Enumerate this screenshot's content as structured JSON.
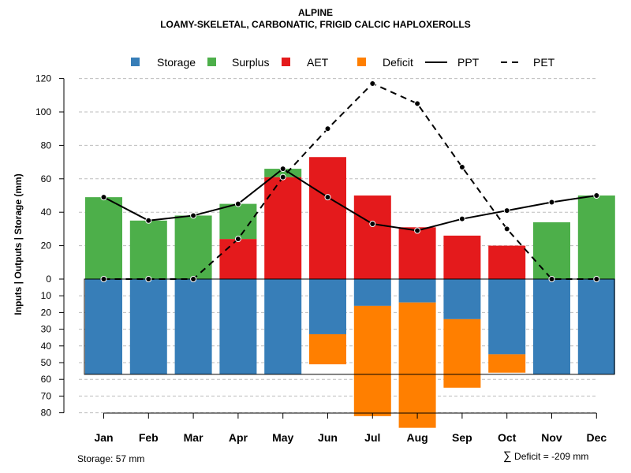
{
  "chart_data": {
    "type": "bar",
    "title": "ALPINE",
    "subtitle": "LOAMY-SKELETAL, CARBONATIC, FRIGID CALCIC HAPLOXEROLLS",
    "ylabel": "Inputs | Outputs | Storage    (mm)",
    "categories": [
      "Jan",
      "Feb",
      "Mar",
      "Apr",
      "May",
      "Jun",
      "Jul",
      "Aug",
      "Sep",
      "Oct",
      "Nov",
      "Dec"
    ],
    "upper_ticks": [
      "0",
      "20",
      "40",
      "60",
      "80",
      "100",
      "120"
    ],
    "lower_ticks": [
      "10",
      "20",
      "30",
      "40",
      "50",
      "60",
      "70",
      "80"
    ],
    "ylim_upper": [
      0,
      120
    ],
    "ylim_lower": [
      0,
      80
    ],
    "storage_capacity": 57,
    "legend": [
      "Storage",
      "Surplus",
      "AET",
      "Deficit",
      "PPT",
      "PET"
    ],
    "colors": {
      "storage": "#377EB8",
      "surplus": "#4DAF4A",
      "aet": "#E41A1C",
      "deficit": "#FF7F00"
    },
    "series": [
      {
        "name": "Surplus",
        "values": [
          49,
          35,
          38,
          21,
          5,
          0,
          0,
          0,
          0,
          0,
          34,
          50
        ]
      },
      {
        "name": "AET",
        "values": [
          0,
          0,
          0,
          24,
          61,
          73,
          50,
          31,
          26,
          20,
          0,
          0
        ]
      },
      {
        "name": "Storage",
        "values": [
          57,
          57,
          57,
          57,
          57,
          33,
          16,
          14,
          24,
          45,
          57,
          57
        ]
      },
      {
        "name": "Deficit",
        "values": [
          0,
          0,
          0,
          0,
          0,
          18,
          66,
          75,
          41,
          11,
          0,
          0
        ]
      },
      {
        "name": "PPT",
        "values": [
          49,
          35,
          38,
          45,
          66,
          49,
          33,
          29,
          36,
          41,
          46,
          50
        ]
      },
      {
        "name": "PET",
        "values": [
          0,
          0,
          0,
          24,
          61,
          90,
          117,
          105,
          67,
          30,
          0,
          0
        ]
      }
    ],
    "storage_label": "Storage: 57 mm",
    "deficit_sigma": "∑",
    "deficit_label": "Deficit = -209 mm"
  }
}
